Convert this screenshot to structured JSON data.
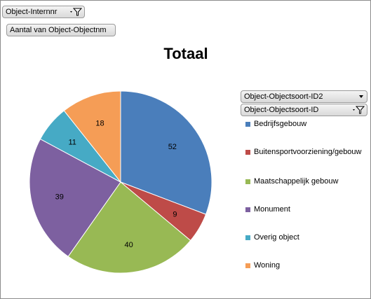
{
  "filters": {
    "internnr_label": "Object-Internnr",
    "aantal_label": "Aantal van Object-Objectnm",
    "soort2_label": "Object-Objectsoort-ID2",
    "soort_label": "Object-Objectsoort-ID"
  },
  "icons": {
    "filter": "filter-icon",
    "dropdown": "dropdown-arrow-icon"
  },
  "chart_data": {
    "type": "pie",
    "title": "Totaal",
    "categories": [
      "Bedrijfsgebouw",
      "Buitensportvoorziening/gebouw",
      "Maatschappelijk gebouw",
      "Monument",
      "Overig object",
      "Woning"
    ],
    "values": [
      52,
      9,
      40,
      39,
      11,
      18
    ],
    "colors": [
      "#4a7ebb",
      "#be4b48",
      "#98b954",
      "#7d60a0",
      "#46aac5",
      "#f59d56"
    ],
    "legend": "right",
    "start_angle": "top",
    "direction": "clockwise"
  }
}
